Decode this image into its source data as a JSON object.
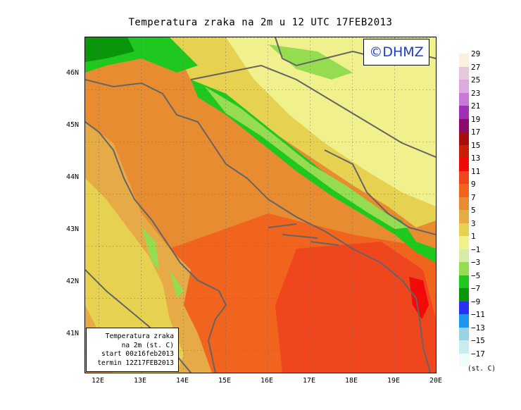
{
  "title": "Temperatura zraka na 2m u 12 UTC 17FEB2013",
  "logo": "©DHMZ",
  "lat_labels": [
    "46N",
    "45N",
    "44N",
    "43N",
    "42N",
    "41N"
  ],
  "lon_labels": [
    "12E",
    "13E",
    "14E",
    "15E",
    "16E",
    "17E",
    "18E",
    "19E",
    "20E"
  ],
  "info_box": {
    "line1": "Temperatura zraka",
    "line2": "na 2m (st. C)",
    "line3": "start 00z16feb2013",
    "line4": "termin 12Z17FEB2013"
  },
  "legend": {
    "levels": [
      {
        "label": "29",
        "color": "#fdf0e0"
      },
      {
        "label": "27",
        "color": "#e6c8dc"
      },
      {
        "label": "25",
        "color": "#dcaae0"
      },
      {
        "label": "23",
        "color": "#c878d6"
      },
      {
        "label": "21",
        "color": "#a030b4"
      },
      {
        "label": "19",
        "color": "#8a0a6e"
      },
      {
        "label": "17",
        "color": "#a40e0e"
      },
      {
        "label": "15",
        "color": "#c81e0a"
      },
      {
        "label": "13",
        "color": "#f00a0a"
      },
      {
        "label": "11",
        "color": "#f0461e"
      },
      {
        "label": "9",
        "color": "#f0641e"
      },
      {
        "label": "7",
        "color": "#e88c32"
      },
      {
        "label": "5",
        "color": "#e6aa46"
      },
      {
        "label": "3",
        "color": "#e6d250"
      },
      {
        "label": "1",
        "color": "#f0f08c"
      },
      {
        "label": "−1",
        "color": "#d6ecaa"
      },
      {
        "label": "−3",
        "color": "#96dc50"
      },
      {
        "label": "−5",
        "color": "#1ec81e"
      },
      {
        "label": "−7",
        "color": "#0a960a"
      },
      {
        "label": "−9",
        "color": "#2832f0"
      },
      {
        "label": "−11",
        "color": "#1e96f0"
      },
      {
        "label": "−13",
        "color": "#9ad2e6"
      },
      {
        "label": "−15",
        "color": "#c8ecf0"
      },
      {
        "label": "−17",
        "color": "#eefcfc"
      }
    ],
    "unit": "(st. C)"
  }
}
